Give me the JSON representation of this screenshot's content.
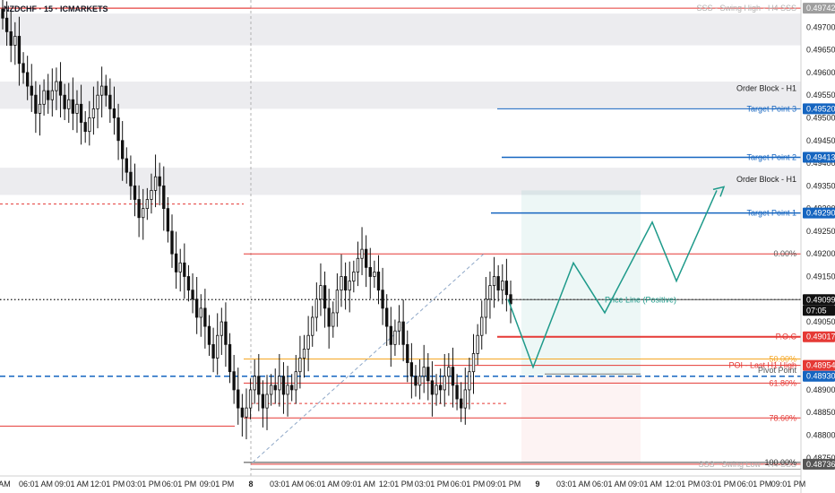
{
  "symbol_title": "NZDCHF · 15 · ICMARKETS",
  "colors": {
    "bull": "#ffffff",
    "bear": "#111111",
    "wick": "#111111",
    "red": "#e53935",
    "blue": "#1565c0",
    "orange": "#f5a623",
    "teal": "#1e9a8a",
    "gray": "#9e9e9e",
    "zone": "#ececef"
  },
  "chart_data": {
    "type": "candlestick",
    "title": "NZDCHF · 15 · ICMARKETS",
    "ylim": [
      0.4871,
      0.4976
    ],
    "y_ticks": [
      "0.49700",
      "0.49650",
      "0.49600",
      "0.49550",
      "0.49500",
      "0.49450",
      "0.49400",
      "0.49350",
      "0.49300",
      "0.49250",
      "0.49200",
      "0.49150",
      "0.49100",
      "0.49050",
      "0.48950",
      "0.48900",
      "0.48850",
      "0.48800",
      "0.48750"
    ],
    "x_ticks": [
      "AM",
      "06:01 AM",
      "09:01 AM",
      "12:01 PM",
      "03:01 PM",
      "06:01 PM",
      "09:01 PM",
      "8",
      "03:01 AM",
      "06:01 AM",
      "09:01 AM",
      "12:01 PM",
      "03:01 PM",
      "06:01 PM",
      "09:01 PM",
      "9",
      "03:01 AM",
      "06:01 AM",
      "09:01 AM",
      "12:01 PM",
      "03:01 PM",
      "06:01 PM",
      "09:01 PM"
    ],
    "day_separator_label": "8",
    "candles_close": [
      0.4972,
      0.4969,
      0.4966,
      0.4968,
      0.4962,
      0.496,
      0.4957,
      0.4955,
      0.4951,
      0.4953,
      0.4956,
      0.4954,
      0.4956,
      0.4958,
      0.4955,
      0.4952,
      0.4954,
      0.4951,
      0.4953,
      0.4949,
      0.4947,
      0.495,
      0.4952,
      0.4955,
      0.4957,
      0.4955,
      0.4952,
      0.495,
      0.4945,
      0.4941,
      0.4938,
      0.4935,
      0.4932,
      0.4928,
      0.493,
      0.4932,
      0.4934,
      0.4937,
      0.4935,
      0.493,
      0.4925,
      0.492,
      0.4916,
      0.4918,
      0.4915,
      0.4912,
      0.491,
      0.4906,
      0.4908,
      0.4904,
      0.49,
      0.4897,
      0.4902,
      0.4905,
      0.49,
      0.4894,
      0.489,
      0.4886,
      0.4884,
      0.4886,
      0.489,
      0.4893,
      0.4889,
      0.4886,
      0.4889,
      0.4891,
      0.489,
      0.4893,
      0.4889,
      0.4891,
      0.489,
      0.4894,
      0.4897,
      0.4899,
      0.4902,
      0.4906,
      0.491,
      0.4913,
      0.4908,
      0.4904,
      0.4907,
      0.4912,
      0.4915,
      0.4912,
      0.4914,
      0.4916,
      0.4919,
      0.4921,
      0.4917,
      0.4915,
      0.4916,
      0.4912,
      0.4908,
      0.4904,
      0.49,
      0.4903,
      0.4905,
      0.49,
      0.4896,
      0.4893,
      0.4891,
      0.4893,
      0.4895,
      0.4892,
      0.4889,
      0.4891,
      0.489,
      0.4893,
      0.4895,
      0.4891,
      0.4888,
      0.4886,
      0.489,
      0.4894,
      0.4898,
      0.4902,
      0.4906,
      0.491,
      0.4913,
      0.4915,
      0.4912,
      0.4914,
      0.4911,
      0.4909
    ],
    "levels": [
      {
        "label": "SSS - Swing High - H4 SSS",
        "price_label": "0.49742",
        "value": 0.49742
      },
      {
        "label": "Order Block - H1",
        "value": 0.49565
      },
      {
        "label": "Target Point 3",
        "price_label": "0.49520",
        "value": 0.4952
      },
      {
        "label": "Target Point 2",
        "price_label": "0.49413",
        "value": 0.49413
      },
      {
        "label": "Order Block - H1",
        "value": 0.49365
      },
      {
        "label": "Target Point 1",
        "price_label": "0.49290",
        "value": 0.4929
      },
      {
        "label": "Price Line (Positive)",
        "price_label": "0.49099",
        "value": 0.49099
      },
      {
        "label": "P.O.C",
        "price_label": "0.49017",
        "value": 0.49017
      },
      {
        "label": "POI - Last H1 High",
        "price_label": "0.48954",
        "value": 0.48954
      },
      {
        "label": "Pivot Point",
        "value": 0.48935
      },
      {
        "price_label": "0.48930",
        "value": 0.4893
      },
      {
        "label": "SSS - Swing Low - H4 SSS",
        "price_label": "0.48736",
        "value": 0.48736
      }
    ],
    "fib_levels": [
      {
        "label": "0.00%",
        "value": 0.492
      },
      {
        "label": "50.00%",
        "value": 0.48968
      },
      {
        "label": "61.80%",
        "value": 0.48915
      },
      {
        "label": "78.60%",
        "value": 0.48838
      },
      {
        "label": "100.00%",
        "value": 0.4874
      }
    ],
    "countdown": "07:05",
    "projection_path": [
      [
        0.491,
        0
      ],
      [
        0.4895,
        1
      ],
      [
        0.4918,
        2
      ],
      [
        0.4907,
        3
      ],
      [
        0.4927,
        4
      ],
      [
        0.4914,
        5
      ],
      [
        0.4934,
        6
      ]
    ]
  }
}
